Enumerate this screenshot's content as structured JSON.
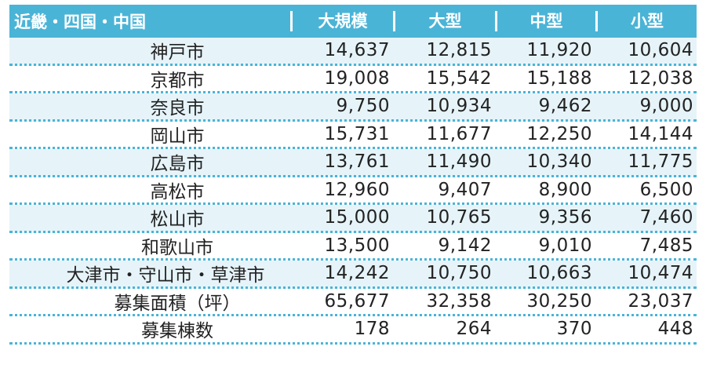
{
  "header": {
    "region": "近畿・四国・中国",
    "columns": [
      "大規模",
      "大型",
      "中型",
      "小型"
    ]
  },
  "rows": [
    {
      "label": "神戸市",
      "values": [
        "14,637",
        "12,815",
        "11,920",
        "10,604"
      ]
    },
    {
      "label": "京都市",
      "values": [
        "19,008",
        "15,542",
        "15,188",
        "12,038"
      ]
    },
    {
      "label": "奈良市",
      "values": [
        "9,750",
        "10,934",
        "9,462",
        "9,000"
      ]
    },
    {
      "label": "岡山市",
      "values": [
        "15,731",
        "11,677",
        "12,250",
        "14,144"
      ]
    },
    {
      "label": "広島市",
      "values": [
        "13,761",
        "11,490",
        "10,340",
        "11,775"
      ]
    },
    {
      "label": "高松市",
      "values": [
        "12,960",
        "9,407",
        "8,900",
        "6,500"
      ]
    },
    {
      "label": "松山市",
      "values": [
        "15,000",
        "10,765",
        "9,356",
        "7,460"
      ]
    },
    {
      "label": "和歌山市",
      "values": [
        "13,500",
        "9,142",
        "9,010",
        "7,485"
      ]
    },
    {
      "label": "大津市・守山市・草津市",
      "values": [
        "14,242",
        "10,750",
        "10,663",
        "10,474"
      ]
    },
    {
      "label": "募集面積（坪）",
      "values": [
        "65,677",
        "32,358",
        "30,250",
        "23,037"
      ]
    },
    {
      "label": "募集棟数",
      "values": [
        "178",
        "264",
        "370",
        "448"
      ]
    }
  ]
}
